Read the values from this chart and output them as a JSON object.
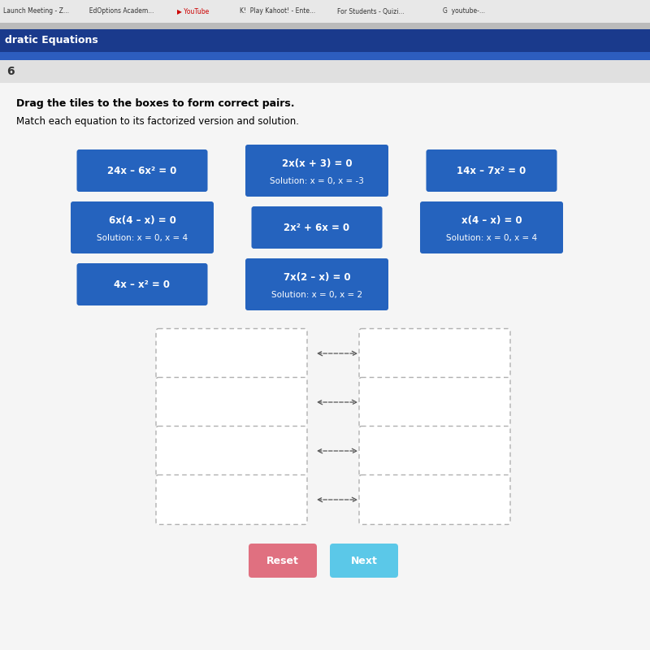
{
  "bg_color": "#f0f0f0",
  "content_bg": "#f8f8f8",
  "top_bar_color": "#1a3a8c",
  "nav_bar_color": "#2d5dbf",
  "question_num": "6",
  "instruction1": "Drag the tiles to the boxes to form correct pairs.",
  "instruction2": "Match each equation to its factorized version and solution.",
  "tiles": [
    {
      "text": "24x – 6x² = 0",
      "two_line": false,
      "row": 0,
      "col": 0
    },
    {
      "text": "2x(x + 3) = 0\nSolution: x = 0, x = -3",
      "two_line": true,
      "row": 0,
      "col": 1
    },
    {
      "text": "14x – 7x² = 0",
      "two_line": false,
      "row": 0,
      "col": 2
    },
    {
      "text": "6x(4 – x) = 0\nSolution: x = 0, x = 4",
      "two_line": true,
      "row": 1,
      "col": 0
    },
    {
      "text": "2x² + 6x = 0",
      "two_line": false,
      "row": 1,
      "col": 1
    },
    {
      "text": "x(4 – x) = 0\nSolution: x = 0, x = 4",
      "two_line": true,
      "row": 1,
      "col": 2
    },
    {
      "text": "4x – x² = 0",
      "two_line": false,
      "row": 2,
      "col": 0
    },
    {
      "text": "7x(2 – x) = 0\nSolution: x = 0, x = 2",
      "two_line": true,
      "row": 2,
      "col": 1
    }
  ],
  "tile_color": "#2563be",
  "tile_text_color": "#ffffff",
  "box_color": "#ffffff",
  "box_border_color": "#aaaaaa",
  "arrow_text": "<———>",
  "arrow_color": "#555555",
  "num_pairs": 4,
  "reset_button_color": "#e07080",
  "next_button_color": "#5bc8e8",
  "reset_text": "Reset",
  "next_text": "Next",
  "browser_bg": "#e8e8e8",
  "browser_text_color": "#333333",
  "tab_text": [
    "Launch Meeting - Z...",
    "EdOptions Academ...",
    "YouTube",
    "Play Kahoot! - Ente...",
    "For Students - Quizi...",
    "youtube-..."
  ],
  "url_bar_color": "#cccccc",
  "nav_text": "dratic Equations",
  "question_bar_color": "#e0e0e0",
  "main_bg": "#f5f5f5"
}
